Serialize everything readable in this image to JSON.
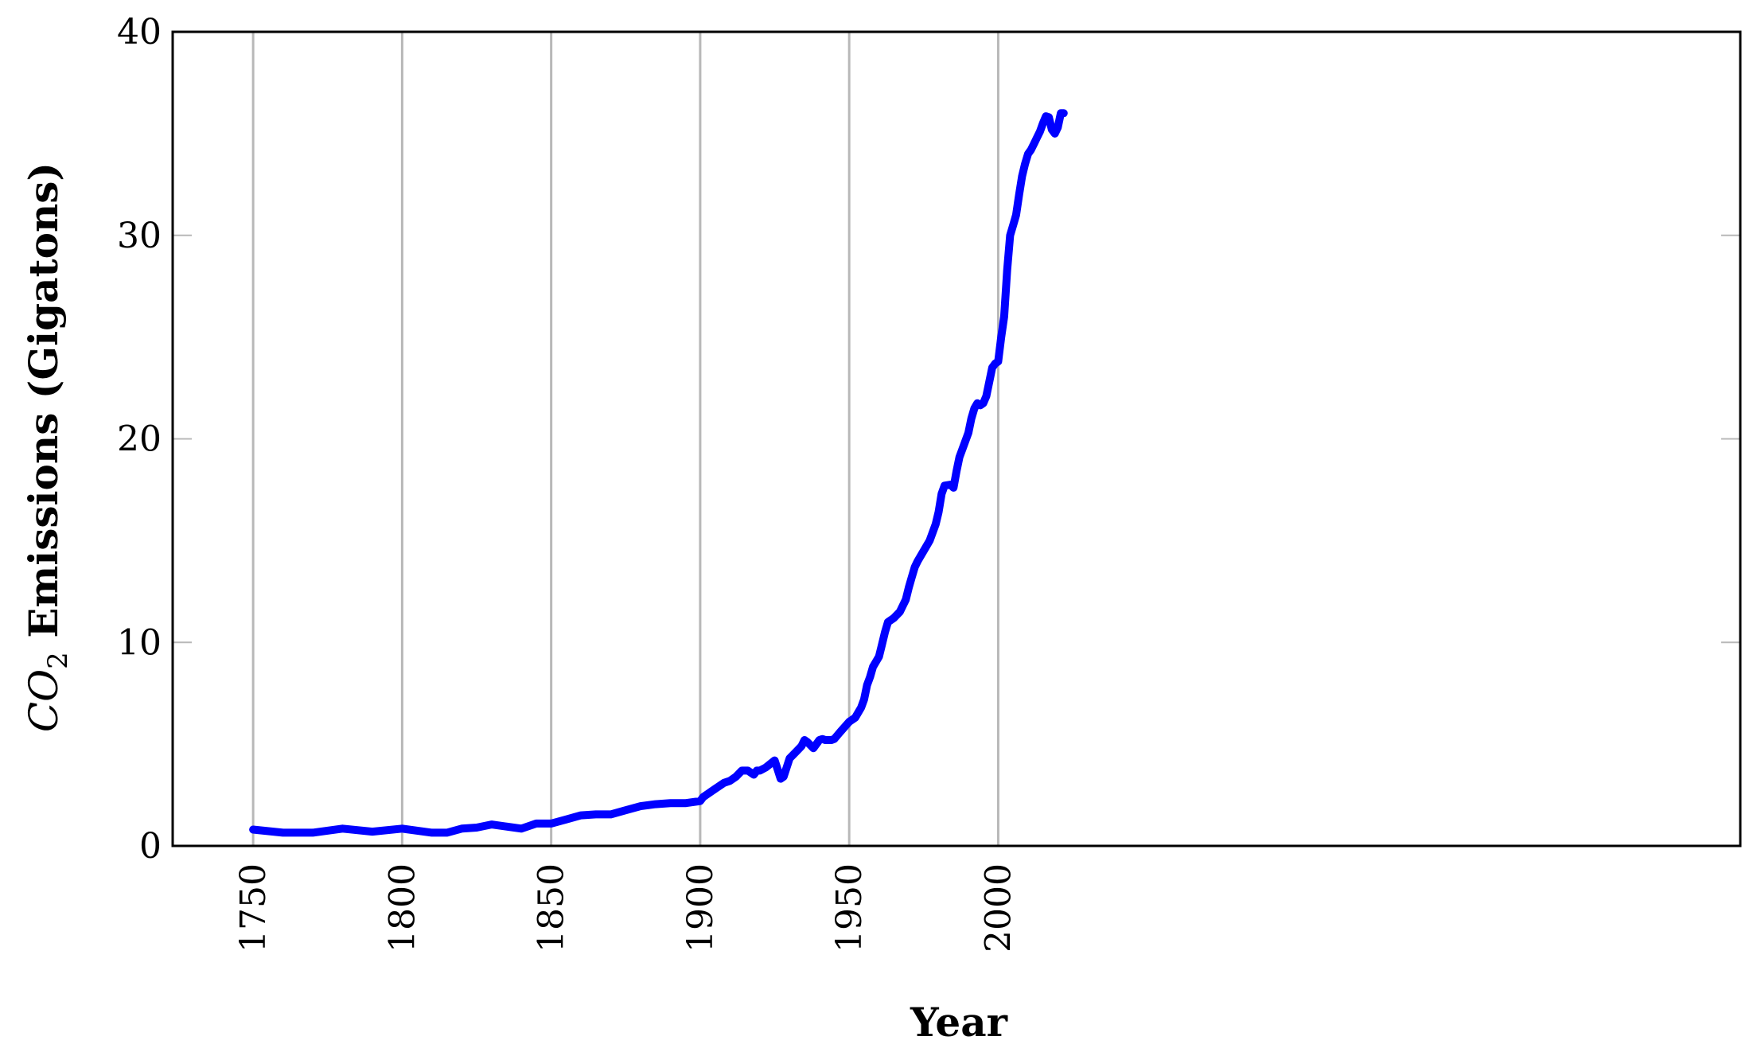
{
  "chart_data": {
    "type": "line",
    "xlabel": "Year",
    "ylabel_prefix": "CO",
    "ylabel_subscript": "2",
    "ylabel_suffix": " Emissions (Gigatons)",
    "xlim": [
      1723,
      2249
    ],
    "ylim": [
      0,
      40
    ],
    "xticks": [
      1750,
      1800,
      1850,
      1900,
      1950,
      2000
    ],
    "yticks": [
      0,
      10,
      20,
      30,
      40
    ],
    "grid": "vertical",
    "line_color": "#0000ff",
    "series": [
      {
        "x": [
          1750,
          1760,
          1770,
          1780,
          1790,
          1800,
          1810,
          1815,
          1820,
          1825,
          1830,
          1835,
          1840,
          1845,
          1850,
          1855,
          1860,
          1865,
          1870,
          1875,
          1880,
          1885,
          1890,
          1895,
          1900,
          1901,
          1905,
          1908,
          1910,
          1912,
          1914,
          1916,
          1918,
          1919,
          1920,
          1922,
          1925,
          1926,
          1927,
          1928,
          1930,
          1932,
          1934,
          1935,
          1936,
          1938,
          1940,
          1941,
          1942,
          1944,
          1945,
          1947,
          1950,
          1952,
          1954,
          1955,
          1956,
          1957,
          1958,
          1960,
          1961,
          1962,
          1963,
          1965,
          1967,
          1969,
          1970,
          1971,
          1972,
          1973,
          1975,
          1977,
          1979,
          1980,
          1981,
          1982,
          1984,
          1985,
          1986,
          1987,
          1988,
          1990,
          1991,
          1992,
          1993,
          1994,
          1995,
          1996,
          1997,
          1998,
          1999,
          2000,
          2001,
          2002,
          2003,
          2004,
          2005,
          2006,
          2007,
          2008,
          2009,
          2010,
          2011,
          2012,
          2013,
          2014,
          2015,
          2016,
          2017,
          2018,
          2019,
          2020,
          2021,
          2022
        ],
        "y": [
          0.8,
          0.65,
          0.65,
          0.85,
          0.7,
          0.85,
          0.65,
          0.65,
          0.85,
          0.9,
          1.05,
          0.95,
          0.85,
          1.1,
          1.1,
          1.3,
          1.5,
          1.55,
          1.55,
          1.75,
          1.95,
          2.05,
          2.1,
          2.1,
          2.2,
          2.4,
          2.8,
          3.1,
          3.2,
          3.4,
          3.7,
          3.7,
          3.5,
          3.7,
          3.7,
          3.85,
          4.2,
          3.75,
          3.3,
          3.4,
          4.3,
          4.6,
          4.9,
          5.2,
          5.1,
          4.8,
          5.2,
          5.25,
          5.2,
          5.2,
          5.25,
          5.6,
          6.1,
          6.3,
          6.8,
          7.2,
          7.9,
          8.3,
          8.8,
          9.3,
          9.9,
          10.5,
          11.0,
          11.2,
          11.5,
          12.1,
          12.7,
          13.2,
          13.7,
          14.0,
          14.5,
          15.0,
          15.8,
          16.4,
          17.3,
          17.7,
          17.75,
          17.6,
          18.4,
          19.1,
          19.5,
          20.3,
          21.0,
          21.5,
          21.75,
          21.65,
          21.75,
          22.1,
          22.8,
          23.5,
          23.7,
          23.8,
          25.0,
          26.0,
          28.3,
          30.0,
          30.5,
          31.0,
          32.0,
          32.9,
          33.5,
          34.0,
          34.2,
          34.5,
          34.8,
          35.1,
          35.5,
          35.85,
          35.8,
          35.2,
          35.0,
          35.3,
          36.0,
          36.0
        ]
      }
    ]
  }
}
